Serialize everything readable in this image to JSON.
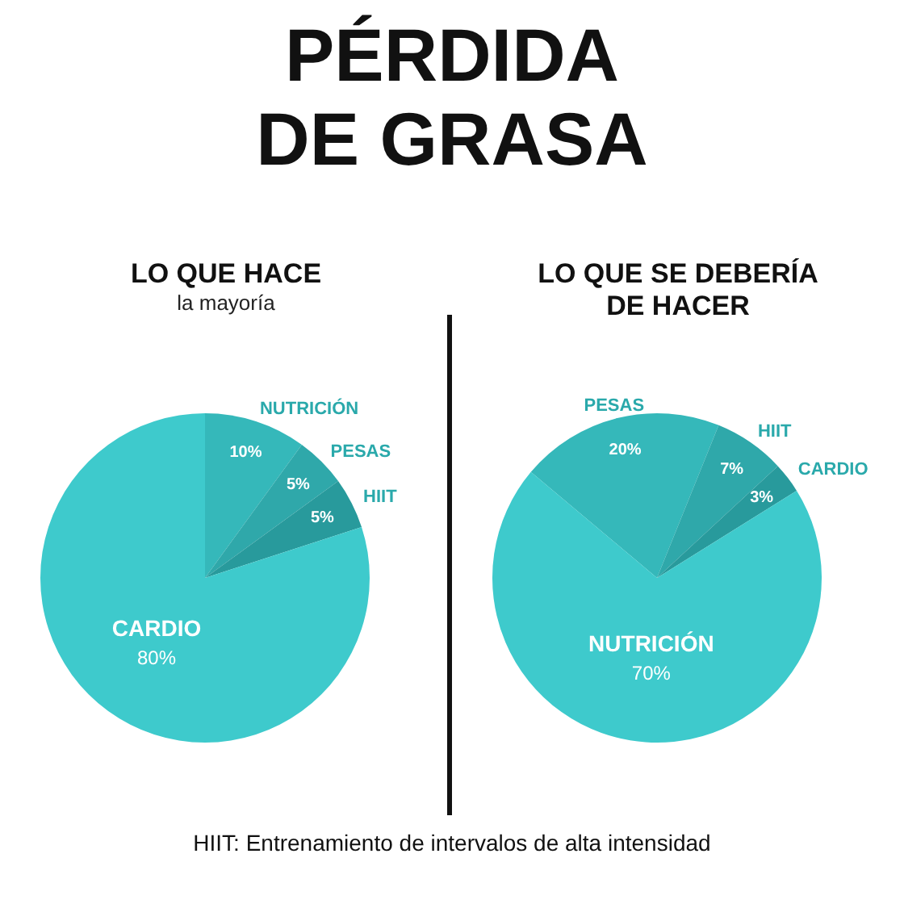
{
  "chart_data": [
    {
      "type": "other",
      "title": "PÉRDIDA DE GRASA",
      "annotations": [
        "HIIT: Entrenamiento de intervalos de alta intensidad"
      ]
    },
    {
      "type": "pie",
      "title": "LO QUE HACE",
      "subtitle": "la mayoría",
      "categories": [
        "NUTRICIÓN",
        "PESAS",
        "HIIT",
        "CARDIO"
      ],
      "values": [
        10,
        5,
        5,
        80
      ],
      "value_labels": [
        "10%",
        "5%",
        "5%",
        "80%"
      ],
      "colors": [
        "#35b8ba",
        "#2fa8aa",
        "#289a9c",
        "#3ecacc"
      ]
    },
    {
      "type": "pie",
      "title": "LO QUE SE DEBERÍA DE HACER",
      "categories": [
        "PESAS",
        "HIIT",
        "CARDIO",
        "NUTRICIÓN"
      ],
      "values": [
        20,
        7,
        3,
        70
      ],
      "value_labels": [
        "20%",
        "7%",
        "3%",
        "70%"
      ],
      "colors": [
        "#35b8ba",
        "#2fa8aa",
        "#289a9c",
        "#3ecacc"
      ]
    }
  ]
}
